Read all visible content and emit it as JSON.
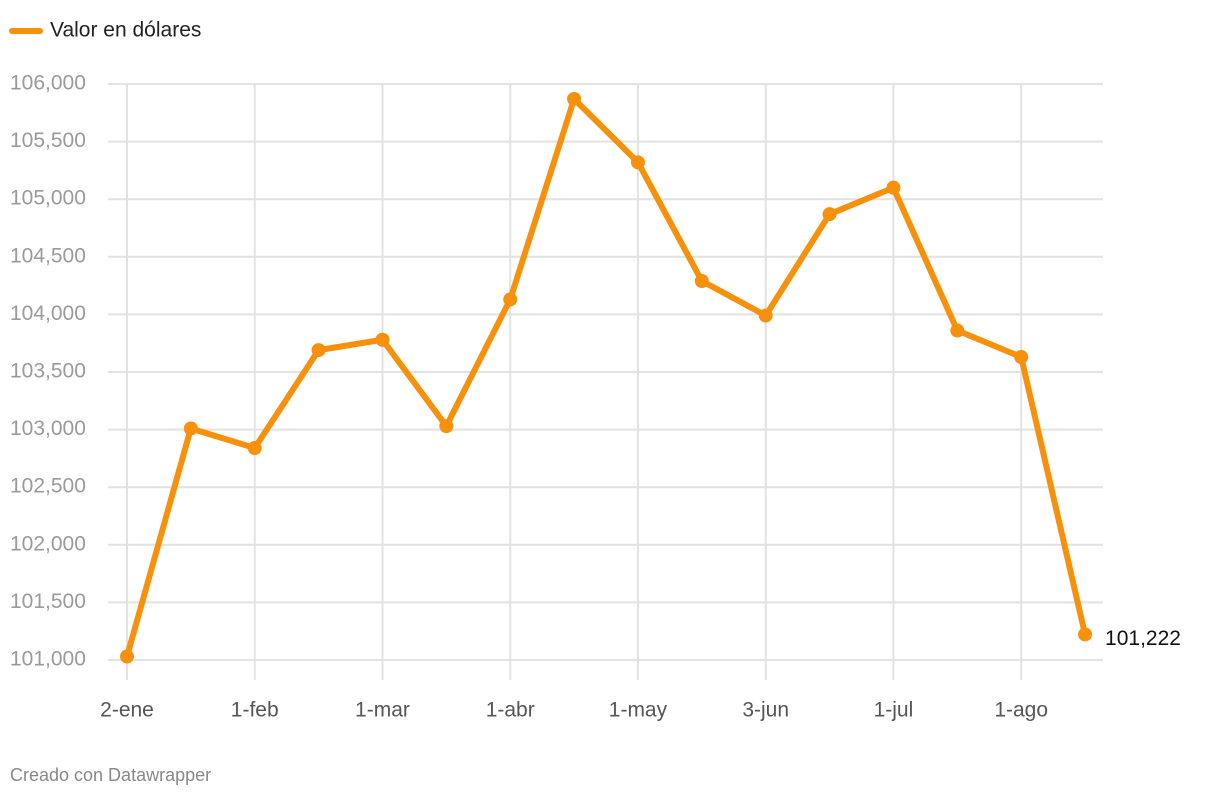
{
  "chart_data": {
    "type": "line",
    "categories": [
      "2-ene",
      null,
      "1-feb",
      null,
      "1-mar",
      null,
      "1-abr",
      null,
      "1-may",
      null,
      "3-jun",
      null,
      "1-jul",
      null,
      "1-ago",
      null
    ],
    "series": [
      {
        "name": "Valor en dólares",
        "color": "#f7900a",
        "values": [
          101030,
          103010,
          102840,
          103690,
          103780,
          103030,
          104130,
          105870,
          105320,
          104290,
          103990,
          104870,
          105100,
          103860,
          103630,
          101222
        ],
        "value_labels": [
          null,
          null,
          null,
          null,
          null,
          null,
          null,
          null,
          null,
          null,
          null,
          null,
          null,
          null,
          null,
          "101,222"
        ]
      }
    ],
    "ylim": [
      101000,
      106000
    ],
    "yticks": [
      {
        "value": 101000,
        "label": "101,000"
      },
      {
        "value": 101500,
        "label": "101,500"
      },
      {
        "value": 102000,
        "label": "102,000"
      },
      {
        "value": 102500,
        "label": "102,500"
      },
      {
        "value": 103000,
        "label": "103,000"
      },
      {
        "value": 103500,
        "label": "103,500"
      },
      {
        "value": 104000,
        "label": "104,000"
      },
      {
        "value": 104500,
        "label": "104,500"
      },
      {
        "value": 105000,
        "label": "105,000"
      },
      {
        "value": 105500,
        "label": "105,500"
      },
      {
        "value": 106000,
        "label": "106,000"
      }
    ],
    "grid": true,
    "legend": "top-left",
    "footer": "Creado con Datawrapper"
  }
}
